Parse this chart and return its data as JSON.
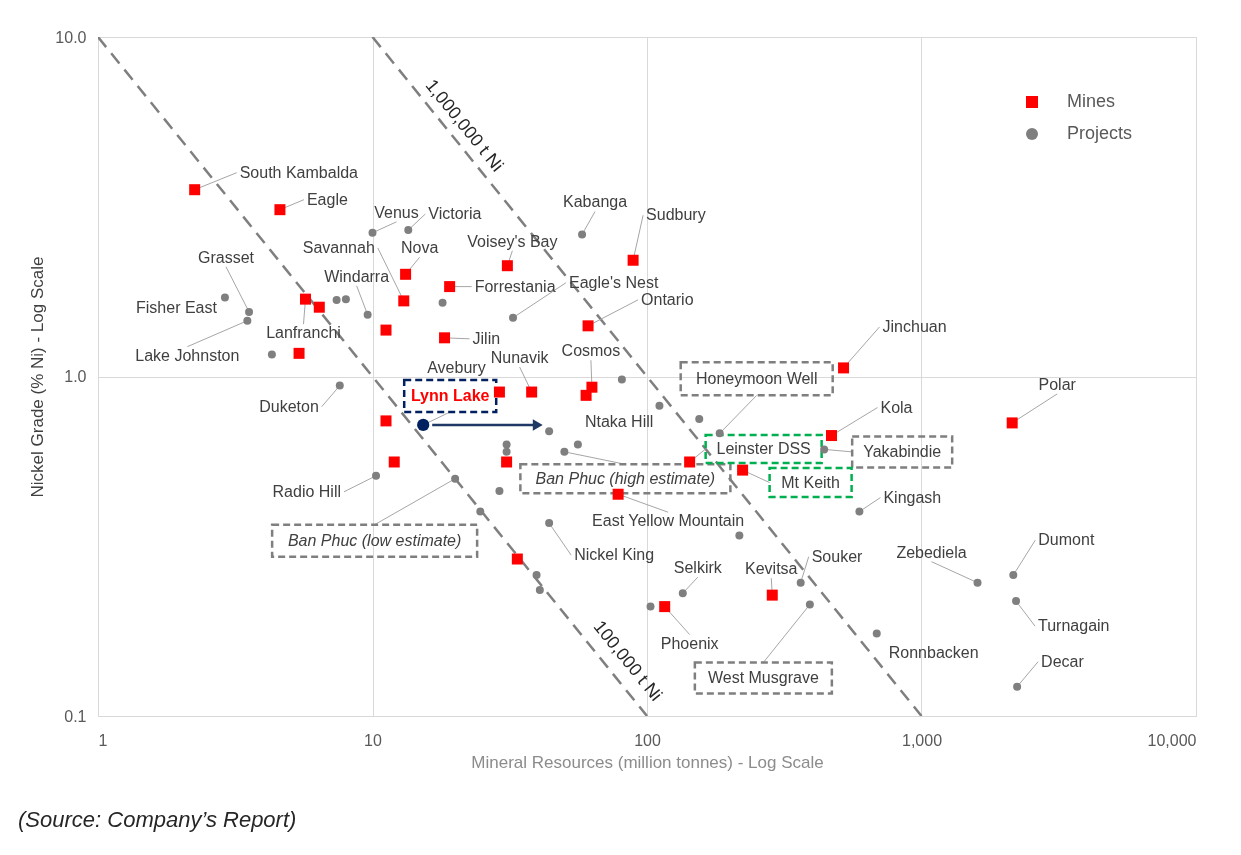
{
  "chart_data": {
    "type": "scatter",
    "xlabel": "Mineral Resources (million tonnes) - Log Scale",
    "ylabel": "Nickel Grade (% Ni) - Log Scale",
    "log": "xy",
    "grid": true,
    "legend": "top right",
    "xlim": [
      1,
      10000
    ],
    "ylim": [
      0.1,
      10
    ],
    "xticks": [
      1,
      10,
      100,
      {
        "value": 1000,
        "label": "1,000"
      },
      {
        "value": 10000,
        "label": "10,000"
      }
    ],
    "yticks": [
      {
        "value": 10,
        "label": "10.0"
      },
      {
        "value": 1,
        "label": "1.0"
      },
      0.1
    ],
    "series": [
      {
        "name": "Mines",
        "marker": "square",
        "color": "#ff0000",
        "x": [
          2.25,
          4.6,
          13.2,
          13.0,
          31,
          89,
          19.1,
          5.7,
          6.4,
          11.2,
          18.3,
          61,
          5.4,
          520,
          29,
          38,
          63,
          60,
          11.2,
          2140,
          470,
          12,
          30.8,
          143,
          223,
          78.5,
          33.7,
          286,
          116
        ],
        "values": [
          3.55,
          3.1,
          2.0,
          1.67,
          2.12,
          2.2,
          1.84,
          1.69,
          1.6,
          1.37,
          1.3,
          1.41,
          1.17,
          1.06,
          0.9,
          0.9,
          0.93,
          0.88,
          0.74,
          0.73,
          0.67,
          0.56,
          0.56,
          0.56,
          0.53,
          0.45,
          0.29,
          0.227,
          0.21
        ]
      },
      {
        "name": "Projects",
        "marker": "circle",
        "color": "#7f7f7f",
        "x": [
          10,
          13.5,
          58,
          7.4,
          8.0,
          3.55,
          2.9,
          3.5,
          4.3,
          9.6,
          18,
          32.5,
          7.6,
          81,
          111,
          155,
          184,
          56,
          44,
          30.8,
          30.8,
          50,
          442,
          10.3,
          20,
          29,
          24.7,
          44,
          217,
          594,
          39.6,
          40.7,
          103,
          135,
          363,
          392,
          1600,
          2160,
          2210,
          2230,
          687
        ],
        "values": [
          2.65,
          2.7,
          2.62,
          1.68,
          1.69,
          1.55,
          1.71,
          1.46,
          1.16,
          1.52,
          1.65,
          1.49,
          0.94,
          0.98,
          0.82,
          0.75,
          0.68,
          0.63,
          0.69,
          0.63,
          0.6,
          0.6,
          0.61,
          0.51,
          0.5,
          0.46,
          0.4,
          0.37,
          0.34,
          0.4,
          0.26,
          0.235,
          0.21,
          0.23,
          0.247,
          0.213,
          0.247,
          0.26,
          0.218,
          0.122,
          0.175
        ]
      },
      {
        "marker": "circle",
        "color": "#002060",
        "x": [
          15.3
        ],
        "values": [
          0.72
        ]
      },
      {
        "type": "line",
        "marker": "triangle",
        "line_style": "solid",
        "color": "#203864",
        "x": [
          16.5,
          40
        ],
        "values": [
          0.72,
          0.72
        ]
      },
      {
        "name": "100,000 t Ni",
        "type": "line",
        "marker": "none",
        "line_style": "dashed",
        "color": "#7f7f7f",
        "x": [
          1,
          100
        ],
        "values": [
          10,
          0.1
        ]
      },
      {
        "name": "1,000,000 t Ni",
        "type": "line",
        "marker": "none",
        "line_style": "dashed",
        "color": "#7f7f7f",
        "x": [
          10,
          1000
        ],
        "values": [
          10,
          0.1
        ]
      }
    ],
    "annotations": [
      {
        "text": "South Kambalda",
        "x": 2.25,
        "y": 3.55
      },
      {
        "text": "Eagle",
        "x": 4.6,
        "y": 3.1
      },
      {
        "text": "Venus",
        "x": 10,
        "y": 2.65
      },
      {
        "text": "Victoria",
        "x": 13.5,
        "y": 2.7
      },
      {
        "text": "Nova",
        "x": 13.2,
        "y": 2.0
      },
      {
        "text": "Savannah",
        "x": 13.0,
        "y": 1.67
      },
      {
        "text": "Windarra",
        "x": 9.6,
        "y": 1.52
      },
      {
        "text": "Grasset",
        "x": 3.55,
        "y": 1.55
      },
      {
        "text": "Fisher East",
        "x": 2.9,
        "y": 1.71
      },
      {
        "text": "Lake Johnston",
        "x": 3.5,
        "y": 1.46
      },
      {
        "text": "Lanfranchi",
        "x": 5.7,
        "y": 1.69
      },
      {
        "text": "Duketon",
        "x": 7.6,
        "y": 0.94
      },
      {
        "text": "Radio Hill",
        "x": 10.3,
        "y": 0.51
      },
      {
        "text": "Ban Phuc (low estimate)",
        "x": 20,
        "y": 0.5
      },
      {
        "text": "Lynn Lake",
        "x": 15.3,
        "y": 0.72
      },
      {
        "text": "Avebury",
        "x": 29,
        "y": 0.9
      },
      {
        "text": "Forrestania",
        "x": 19.1,
        "y": 1.84
      },
      {
        "text": "Voisey's Bay",
        "x": 31,
        "y": 2.12
      },
      {
        "text": "Kabanga",
        "x": 58,
        "y": 2.62
      },
      {
        "text": "Sudbury",
        "x": 89,
        "y": 2.2
      },
      {
        "text": "Eagle's Nest",
        "x": 32.5,
        "y": 1.49
      },
      {
        "text": "Ontario",
        "x": 61,
        "y": 1.41
      },
      {
        "text": "Jilin",
        "x": 18.3,
        "y": 1.3
      },
      {
        "text": "Nunavik",
        "x": 38,
        "y": 0.9
      },
      {
        "text": "Cosmos",
        "x": 63,
        "y": 0.93
      },
      {
        "text": "Ntaka Hill",
        "x": 56,
        "y": 0.63
      },
      {
        "text": "Honeymoon Well",
        "x": 184,
        "y": 0.68
      },
      {
        "text": "Ban Phuc (high estimate)",
        "x": 50,
        "y": 0.6
      },
      {
        "text": "Leinster DSS",
        "x": 143,
        "y": 0.56
      },
      {
        "text": "Mt Keith",
        "x": 223,
        "y": 0.53
      },
      {
        "text": "Kola",
        "x": 470,
        "y": 0.67
      },
      {
        "text": "Yakabindie",
        "x": 442,
        "y": 0.61
      },
      {
        "text": "Jinchuan",
        "x": 520,
        "y": 1.06
      },
      {
        "text": "Polar",
        "x": 2140,
        "y": 0.73
      },
      {
        "text": "East Yellow Mountain",
        "x": 78.5,
        "y": 0.45
      },
      {
        "text": "Nickel King",
        "x": 44,
        "y": 0.37
      },
      {
        "text": "Kingash",
        "x": 594,
        "y": 0.4
      },
      {
        "text": "Selkirk",
        "x": 135,
        "y": 0.23
      },
      {
        "text": "Phoenix",
        "x": 116,
        "y": 0.21
      },
      {
        "text": "Kevitsa",
        "x": 286,
        "y": 0.227
      },
      {
        "text": "Souker",
        "x": 363,
        "y": 0.247
      },
      {
        "text": "West Musgrave",
        "x": 392,
        "y": 0.213
      },
      {
        "text": "Zebediela",
        "x": 1600,
        "y": 0.247
      },
      {
        "text": "Dumont",
        "x": 2160,
        "y": 0.26
      },
      {
        "text": "Turnagain",
        "x": 2210,
        "y": 0.218
      },
      {
        "text": "Ronnbacken",
        "x": 687,
        "y": 0.175
      },
      {
        "text": "Decar",
        "x": 2230,
        "y": 0.122
      },
      "(Source: Company’s Report)"
    ]
  }
}
